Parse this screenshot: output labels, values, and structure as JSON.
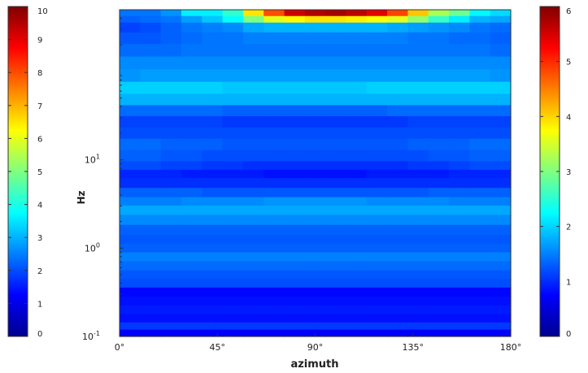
{
  "chart_data": {
    "type": "heatmap",
    "xlabel": "azimuth",
    "ylabel": "Hz",
    "x_ticks": [
      "0°",
      "45°",
      "90°",
      "135°",
      "180°"
    ],
    "x_range": [
      0,
      180
    ],
    "y_scale": "log",
    "y_range": [
      0.1,
      500
    ],
    "y_ticks": [
      {
        "value": 0.1,
        "base": "10",
        "exp": "-1"
      },
      {
        "value": 1,
        "base": "10",
        "exp": "0"
      },
      {
        "value": 10,
        "base": "10",
        "exp": "1"
      }
    ],
    "colormap": "jet",
    "left_colorbar": {
      "range": [
        0,
        10
      ],
      "ticks": [
        "0",
        "1",
        "2",
        "3",
        "4",
        "5",
        "6",
        "7",
        "8",
        "9",
        "10"
      ]
    },
    "right_colorbar": {
      "range": [
        0,
        6
      ],
      "ticks": [
        "0",
        "1",
        "2",
        "3",
        "4",
        "5",
        "6"
      ]
    },
    "azimuth_columns": 19,
    "rows": [
      {
        "hz": 450,
        "values": [
          2.4,
          2.4,
          2.7,
          3.6,
          3.6,
          4.2,
          6.5,
          8.0,
          9.2,
          9.5,
          9.6,
          9.4,
          9.0,
          8.1,
          6.8,
          5.4,
          4.8,
          3.7,
          3.4
        ]
      },
      {
        "hz": 400,
        "values": [
          2.2,
          2.3,
          2.4,
          2.8,
          3.2,
          3.8,
          5.0,
          6.0,
          6.3,
          6.5,
          6.5,
          6.4,
          6.2,
          6.0,
          5.2,
          4.3,
          3.6,
          3.0,
          2.9
        ]
      },
      {
        "hz": 320,
        "values": [
          1.9,
          2.0,
          2.2,
          2.4,
          2.5,
          2.6,
          2.9,
          3.0,
          3.0,
          3.0,
          3.0,
          3.0,
          3.0,
          2.9,
          2.8,
          2.7,
          2.6,
          2.4,
          2.3
        ]
      },
      {
        "hz": 240,
        "values": [
          2.1,
          2.1,
          2.2,
          2.3,
          2.4,
          2.4,
          2.5,
          2.5,
          2.5,
          2.5,
          2.5,
          2.5,
          2.5,
          2.5,
          2.4,
          2.4,
          2.3,
          2.3,
          2.2
        ]
      },
      {
        "hz": 175,
        "values": [
          2.3,
          2.3,
          2.3,
          2.4,
          2.4,
          2.4,
          2.4,
          2.4,
          2.4,
          2.4,
          2.4,
          2.4,
          2.4,
          2.4,
          2.4,
          2.4,
          2.4,
          2.4,
          2.3
        ]
      },
      {
        "hz": 125,
        "values": [
          2.6,
          2.6,
          2.6,
          2.6,
          2.6,
          2.6,
          2.6,
          2.6,
          2.6,
          2.6,
          2.6,
          2.6,
          2.6,
          2.6,
          2.6,
          2.6,
          2.6,
          2.6,
          2.6
        ]
      },
      {
        "hz": 90,
        "values": [
          2.7,
          2.8,
          2.8,
          2.8,
          2.8,
          2.8,
          2.8,
          2.8,
          2.8,
          2.8,
          2.8,
          2.8,
          2.8,
          2.8,
          2.8,
          2.8,
          2.8,
          2.8,
          2.7
        ]
      },
      {
        "hz": 65,
        "values": [
          3.3,
          3.3,
          3.3,
          3.3,
          3.3,
          3.2,
          3.2,
          3.2,
          3.2,
          3.2,
          3.2,
          3.2,
          3.3,
          3.3,
          3.3,
          3.3,
          3.3,
          3.3,
          3.3
        ]
      },
      {
        "hz": 48,
        "values": [
          3.0,
          3.0,
          3.0,
          3.0,
          3.0,
          3.0,
          3.0,
          3.0,
          3.0,
          3.0,
          3.0,
          3.0,
          3.0,
          3.0,
          3.0,
          3.0,
          3.0,
          3.0,
          3.0
        ]
      },
      {
        "hz": 36,
        "values": [
          2.3,
          2.3,
          2.3,
          2.3,
          2.3,
          2.2,
          2.2,
          2.2,
          2.2,
          2.2,
          2.2,
          2.2,
          2.2,
          2.3,
          2.3,
          2.3,
          2.3,
          2.3,
          2.3
        ]
      },
      {
        "hz": 27,
        "values": [
          1.9,
          1.9,
          1.9,
          1.9,
          1.9,
          1.8,
          1.8,
          1.8,
          1.8,
          1.8,
          1.8,
          1.8,
          1.8,
          1.8,
          1.9,
          1.9,
          1.9,
          1.9,
          1.9
        ]
      },
      {
        "hz": 20,
        "values": [
          2.0,
          2.0,
          2.0,
          2.0,
          2.0,
          2.0,
          2.0,
          2.0,
          2.0,
          2.0,
          2.0,
          2.0,
          2.0,
          2.0,
          2.0,
          2.0,
          2.0,
          2.0,
          2.0
        ]
      },
      {
        "hz": 15,
        "values": [
          2.3,
          2.3,
          2.2,
          2.2,
          2.2,
          2.1,
          2.1,
          2.1,
          2.1,
          2.1,
          2.1,
          2.1,
          2.1,
          2.1,
          2.2,
          2.2,
          2.2,
          2.3,
          2.3
        ]
      },
      {
        "hz": 11,
        "values": [
          2.2,
          2.2,
          2.1,
          2.1,
          2.0,
          2.0,
          2.0,
          2.0,
          2.0,
          2.0,
          2.0,
          2.0,
          2.0,
          2.0,
          2.0,
          2.1,
          2.1,
          2.2,
          2.2
        ]
      },
      {
        "hz": 8.5,
        "values": [
          2.0,
          2.0,
          1.9,
          1.9,
          1.8,
          1.8,
          1.7,
          1.7,
          1.7,
          1.7,
          1.7,
          1.7,
          1.7,
          1.7,
          1.8,
          1.8,
          1.9,
          2.0,
          2.0
        ]
      },
      {
        "hz": 7.0,
        "values": [
          1.6,
          1.6,
          1.6,
          1.5,
          1.5,
          1.5,
          1.5,
          1.4,
          1.4,
          1.4,
          1.4,
          1.4,
          1.5,
          1.5,
          1.5,
          1.5,
          1.6,
          1.6,
          1.6
        ]
      },
      {
        "hz": 5.5,
        "values": [
          1.7,
          1.7,
          1.7,
          1.7,
          1.7,
          1.7,
          1.7,
          1.7,
          1.7,
          1.7,
          1.7,
          1.7,
          1.7,
          1.7,
          1.7,
          1.7,
          1.7,
          1.7,
          1.7
        ]
      },
      {
        "hz": 4.2,
        "values": [
          2.2,
          2.2,
          2.2,
          2.2,
          2.1,
          2.1,
          2.1,
          2.1,
          2.1,
          2.1,
          2.1,
          2.1,
          2.1,
          2.1,
          2.1,
          2.2,
          2.2,
          2.2,
          2.2
        ]
      },
      {
        "hz": 3.4,
        "values": [
          2.5,
          2.5,
          2.5,
          2.6,
          2.6,
          2.6,
          2.6,
          2.7,
          2.7,
          2.7,
          2.7,
          2.7,
          2.6,
          2.6,
          2.6,
          2.6,
          2.5,
          2.5,
          2.5
        ]
      },
      {
        "hz": 2.7,
        "values": [
          2.9,
          2.9,
          2.9,
          2.9,
          2.9,
          2.9,
          2.9,
          2.9,
          2.9,
          2.9,
          2.9,
          2.9,
          2.9,
          2.9,
          2.9,
          2.9,
          2.9,
          2.9,
          2.9
        ]
      },
      {
        "hz": 2.1,
        "values": [
          2.6,
          2.6,
          2.6,
          2.6,
          2.6,
          2.6,
          2.6,
          2.6,
          2.6,
          2.6,
          2.6,
          2.6,
          2.6,
          2.6,
          2.6,
          2.6,
          2.6,
          2.6,
          2.6
        ]
      },
      {
        "hz": 1.6,
        "values": [
          2.2,
          2.2,
          2.2,
          2.2,
          2.2,
          2.2,
          2.2,
          2.2,
          2.2,
          2.2,
          2.2,
          2.2,
          2.2,
          2.2,
          2.2,
          2.2,
          2.2,
          2.2,
          2.2
        ]
      },
      {
        "hz": 1.25,
        "values": [
          2.1,
          2.1,
          2.1,
          2.1,
          2.1,
          2.1,
          2.1,
          2.1,
          2.1,
          2.1,
          2.1,
          2.1,
          2.1,
          2.1,
          2.1,
          2.1,
          2.1,
          2.1,
          2.1
        ]
      },
      {
        "hz": 1.0,
        "values": [
          2.2,
          2.2,
          2.2,
          2.2,
          2.2,
          2.2,
          2.2,
          2.2,
          2.2,
          2.2,
          2.2,
          2.2,
          2.2,
          2.2,
          2.2,
          2.2,
          2.2,
          2.2,
          2.2
        ]
      },
      {
        "hz": 0.8,
        "values": [
          2.5,
          2.5,
          2.5,
          2.5,
          2.5,
          2.5,
          2.5,
          2.5,
          2.5,
          2.5,
          2.5,
          2.5,
          2.5,
          2.5,
          2.5,
          2.5,
          2.5,
          2.5,
          2.5
        ]
      },
      {
        "hz": 0.63,
        "values": [
          2.3,
          2.3,
          2.3,
          2.3,
          2.3,
          2.3,
          2.3,
          2.3,
          2.3,
          2.3,
          2.3,
          2.3,
          2.3,
          2.3,
          2.3,
          2.3,
          2.3,
          2.3,
          2.3
        ]
      },
      {
        "hz": 0.5,
        "values": [
          2.1,
          2.1,
          2.1,
          2.1,
          2.1,
          2.1,
          2.1,
          2.1,
          2.1,
          2.1,
          2.1,
          2.1,
          2.1,
          2.1,
          2.1,
          2.1,
          2.1,
          2.1,
          2.1
        ]
      },
      {
        "hz": 0.4,
        "values": [
          2.0,
          2.0,
          2.0,
          2.0,
          2.0,
          2.0,
          2.0,
          2.0,
          2.0,
          2.0,
          2.0,
          2.0,
          2.0,
          2.0,
          2.0,
          2.0,
          2.0,
          2.0,
          2.0
        ]
      },
      {
        "hz": 0.32,
        "values": [
          1.3,
          1.3,
          1.3,
          1.3,
          1.3,
          1.3,
          1.3,
          1.3,
          1.3,
          1.3,
          1.3,
          1.3,
          1.3,
          1.3,
          1.3,
          1.3,
          1.3,
          1.3,
          1.3
        ]
      },
      {
        "hz": 0.25,
        "values": [
          1.4,
          1.4,
          1.4,
          1.4,
          1.4,
          1.4,
          1.4,
          1.4,
          1.4,
          1.4,
          1.4,
          1.4,
          1.4,
          1.4,
          1.4,
          1.4,
          1.4,
          1.4,
          1.4
        ]
      },
      {
        "hz": 0.2,
        "values": [
          1.5,
          1.5,
          1.5,
          1.5,
          1.5,
          1.5,
          1.5,
          1.5,
          1.5,
          1.5,
          1.5,
          1.5,
          1.5,
          1.5,
          1.5,
          1.5,
          1.5,
          1.5,
          1.5
        ]
      },
      {
        "hz": 0.16,
        "values": [
          1.4,
          1.4,
          1.4,
          1.4,
          1.4,
          1.4,
          1.4,
          1.4,
          1.4,
          1.4,
          1.4,
          1.4,
          1.4,
          1.4,
          1.4,
          1.4,
          1.4,
          1.4,
          1.4
        ]
      },
      {
        "hz": 0.13,
        "values": [
          1.8,
          1.8,
          1.8,
          1.8,
          1.8,
          1.8,
          1.8,
          1.8,
          1.8,
          1.8,
          1.8,
          1.8,
          1.8,
          1.8,
          1.8,
          1.8,
          1.8,
          1.8,
          1.8
        ]
      },
      {
        "hz": 0.11,
        "values": [
          1.2,
          1.2,
          1.2,
          1.2,
          1.2,
          1.2,
          1.2,
          1.2,
          1.2,
          1.2,
          1.2,
          1.2,
          1.2,
          1.2,
          1.2,
          1.2,
          1.2,
          1.2,
          1.2
        ]
      }
    ]
  }
}
